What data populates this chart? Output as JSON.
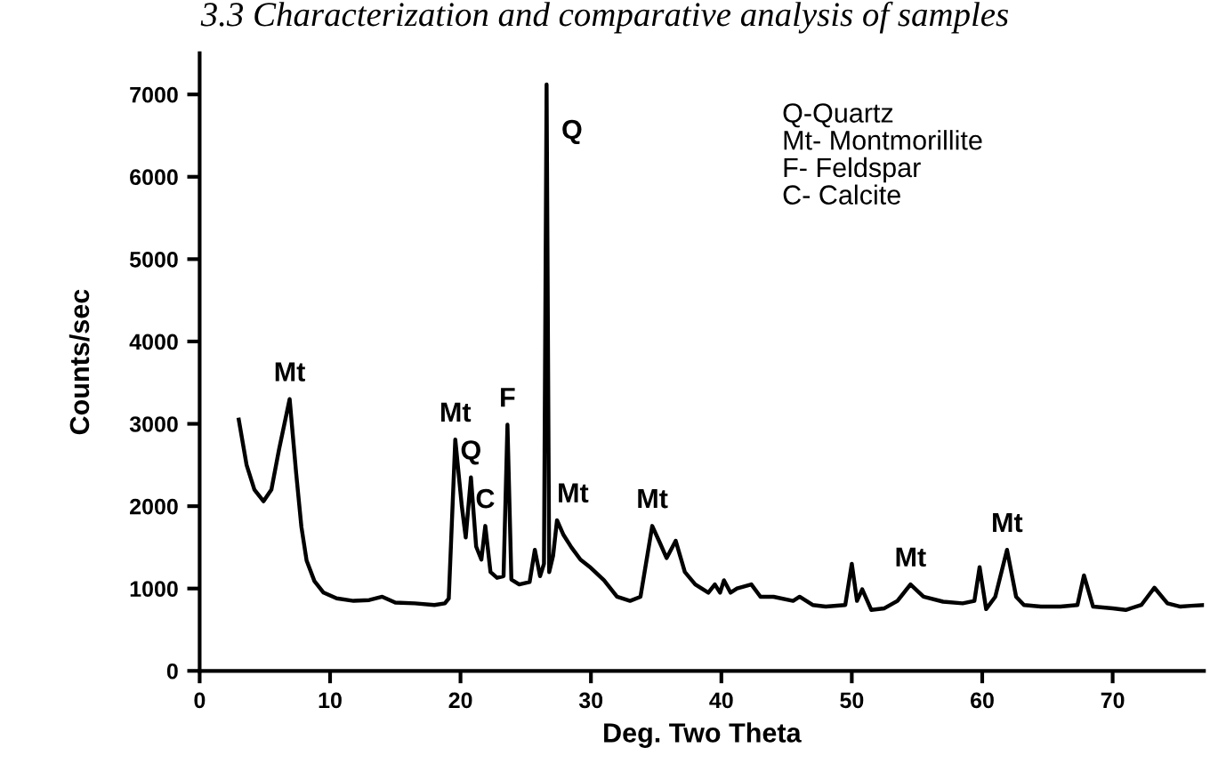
{
  "chart_data": {
    "type": "line",
    "title": "3.3 Characterization and comparative analysis of samples",
    "xlabel": "Deg. Two Theta",
    "ylabel": "Counts/sec",
    "series": [
      {
        "color": "#000000",
        "x": [
          3.0,
          3.6,
          4.2,
          4.9,
          5.5,
          6.1,
          6.9,
          7.4,
          7.8,
          8.2,
          8.8,
          9.5,
          10.5,
          11.8,
          13.0,
          14.0,
          15.0,
          16.5,
          18.0,
          18.8,
          19.1,
          19.6,
          20.1,
          20.4,
          20.8,
          21.2,
          21.6,
          21.9,
          22.3,
          22.8,
          23.3,
          23.6,
          23.9,
          24.5,
          25.3,
          25.7,
          26.1,
          26.4,
          26.6,
          26.8,
          27.1,
          27.4,
          27.9,
          28.5,
          29.2,
          30.0,
          31.0,
          32.0,
          33.0,
          33.8,
          34.7,
          35.3,
          35.8,
          36.5,
          37.2,
          38.0,
          39.0,
          39.5,
          39.9,
          40.2,
          40.7,
          41.2,
          42.3,
          43.0,
          44.0,
          45.5,
          46.0,
          47.0,
          48.0,
          49.5,
          50.0,
          50.4,
          50.8,
          51.5,
          52.5,
          53.5,
          54.5,
          55.5,
          57.0,
          58.5,
          59.4,
          59.8,
          60.3,
          61.0,
          61.9,
          62.6,
          63.2,
          64.5,
          66.0,
          67.3,
          67.8,
          68.5,
          70.0,
          71.0,
          72.2,
          73.2,
          74.2,
          75.2,
          76.0,
          77.0
        ],
        "values": [
          3050,
          2500,
          2200,
          2060,
          2200,
          2700,
          3300,
          2400,
          1750,
          1340,
          1090,
          950,
          880,
          850,
          860,
          900,
          830,
          820,
          800,
          820,
          880,
          2810,
          2000,
          1620,
          2350,
          1510,
          1350,
          1760,
          1200,
          1130,
          1150,
          2990,
          1110,
          1050,
          1080,
          1470,
          1150,
          1300,
          7120,
          1200,
          1400,
          1830,
          1650,
          1500,
          1350,
          1250,
          1100,
          900,
          850,
          900,
          1760,
          1550,
          1370,
          1580,
          1200,
          1050,
          950,
          1050,
          950,
          1100,
          950,
          1000,
          1050,
          900,
          900,
          850,
          900,
          800,
          780,
          800,
          1300,
          850,
          990,
          740,
          760,
          850,
          1050,
          900,
          840,
          820,
          850,
          1260,
          750,
          900,
          1470,
          900,
          800,
          780,
          780,
          800,
          1160,
          780,
          760,
          740,
          800,
          1010,
          820,
          780,
          790,
          800
        ]
      }
    ],
    "xlim": [
      0,
      77
    ],
    "ylim": [
      0,
      7500
    ],
    "xticks": [
      0,
      10,
      20,
      30,
      40,
      50,
      60,
      70
    ],
    "yticks": [
      0,
      1000,
      2000,
      3000,
      4000,
      5000,
      6000,
      7000
    ],
    "grid": false,
    "legend": false,
    "marker": "none",
    "line_style": "solid",
    "annotations": [
      {
        "text": "Mt",
        "x": 6.9,
        "y": 3300
      },
      {
        "text": "Mt",
        "x": 19.6,
        "y": 2810
      },
      {
        "text": "Q",
        "x": 20.8,
        "y": 2350
      },
      {
        "text": "C",
        "x": 21.9,
        "y": 1760
      },
      {
        "text": "F",
        "x": 23.6,
        "y": 2990
      },
      {
        "text": "Q",
        "x": 26.6,
        "y": 7120
      },
      {
        "text": "Mt",
        "x": 27.4,
        "y": 1830
      },
      {
        "text": "Mt",
        "x": 34.7,
        "y": 1760
      },
      {
        "text": "Mt",
        "x": 54.5,
        "y": 1050
      },
      {
        "text": "Mt",
        "x": 61.9,
        "y": 1470
      },
      "Q-Quartz\nMt- Montmorillite\nF- Feldspar\nC- Calcite"
    ]
  }
}
